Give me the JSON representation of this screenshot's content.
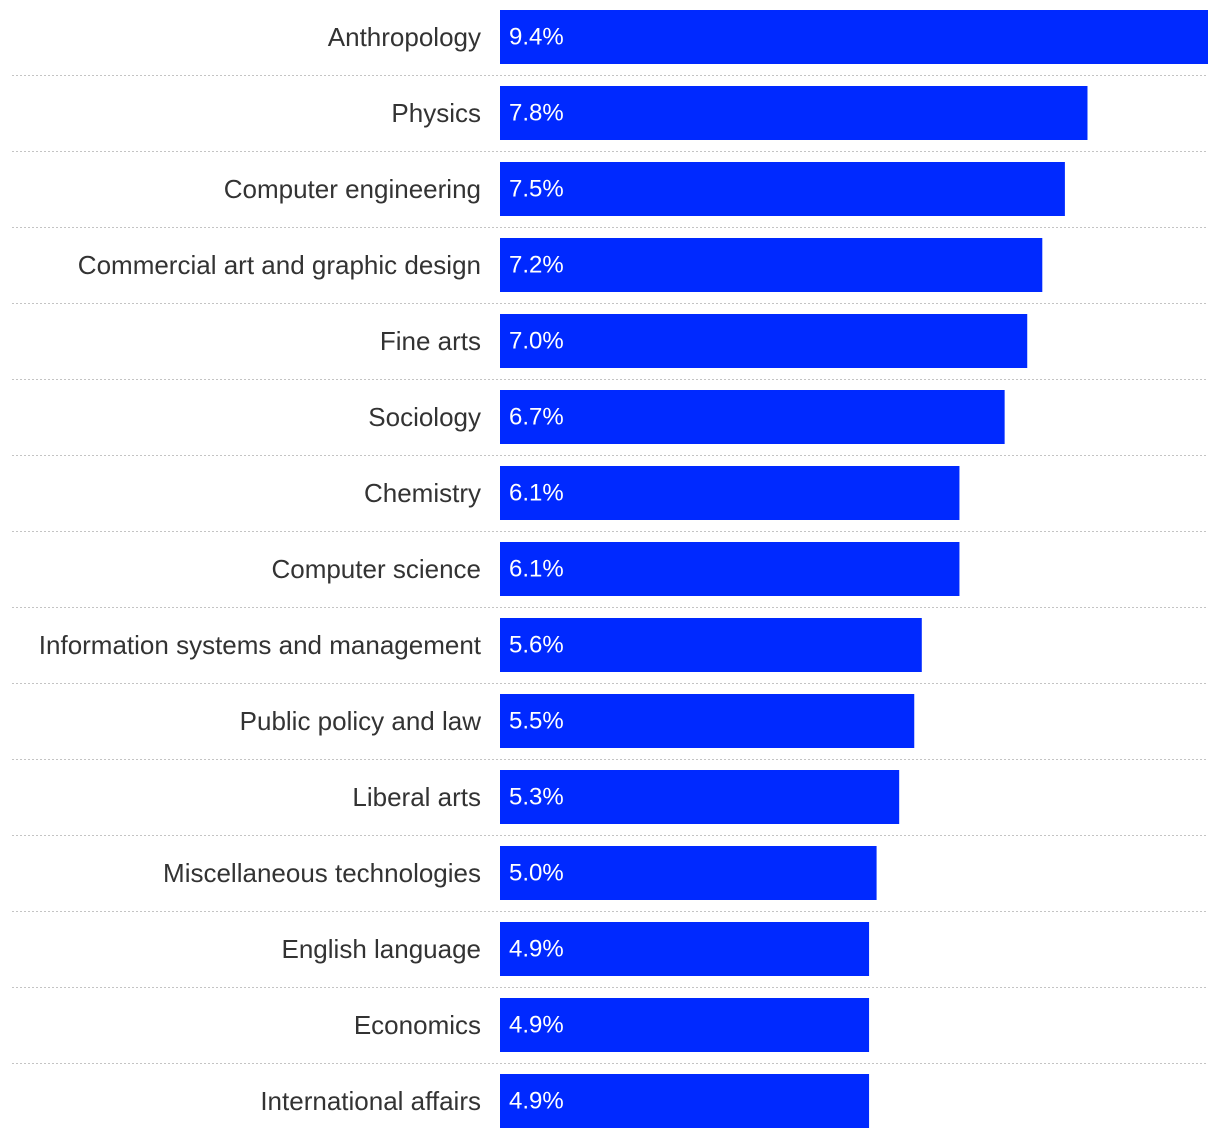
{
  "chart_data": {
    "type": "bar",
    "orientation": "horizontal",
    "title": "",
    "xlabel": "",
    "ylabel": "",
    "value_suffix": "%",
    "xlim": [
      0,
      9.4
    ],
    "bar_color": "#0029ff",
    "label_color": "#333333",
    "value_label_color": "#ffffff",
    "categories": [
      "Anthropology",
      "Physics",
      "Computer engineering",
      "Commercial art and graphic design",
      "Fine arts",
      "Sociology",
      "Chemistry",
      "Computer science",
      "Information systems and management",
      "Public policy and law",
      "Liberal arts",
      "Miscellaneous technologies",
      "English language",
      "Economics",
      "International affairs"
    ],
    "values": [
      9.4,
      7.8,
      7.5,
      7.2,
      7.0,
      6.7,
      6.1,
      6.1,
      5.6,
      5.5,
      5.3,
      5.0,
      4.9,
      4.9,
      4.9
    ],
    "value_labels": [
      "9.4%",
      "7.8%",
      "7.5%",
      "7.2%",
      "7.0%",
      "6.7%",
      "6.1%",
      "6.1%",
      "5.6%",
      "5.5%",
      "5.3%",
      "5.0%",
      "4.9%",
      "4.9%",
      "4.9%"
    ]
  }
}
